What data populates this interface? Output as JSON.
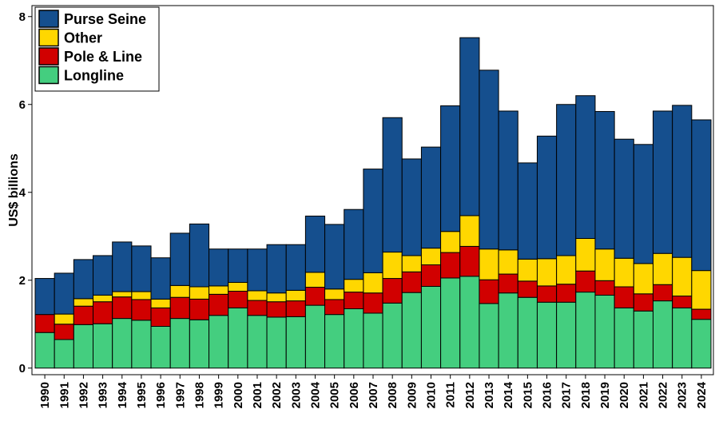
{
  "chart_data": {
    "type": "bar",
    "stacked": true,
    "ylabel": "US$ billions",
    "xlabel": "",
    "ylim": [
      -0.15,
      8.25
    ],
    "yticks": [
      0,
      2,
      4,
      6,
      8
    ],
    "grid": false,
    "legend_placement": "top-left",
    "categories": [
      "1990",
      "1991",
      "1992",
      "1993",
      "1994",
      "1995",
      "1996",
      "1997",
      "1998",
      "1999",
      "2000",
      "2001",
      "2002",
      "2003",
      "2004",
      "2005",
      "2006",
      "2007",
      "2008",
      "2009",
      "2010",
      "2011",
      "2012",
      "2013",
      "2014",
      "2015",
      "2016",
      "2017",
      "2018",
      "2019",
      "2020",
      "2021",
      "2022",
      "2023",
      "2024"
    ],
    "series": [
      {
        "name": "Longline",
        "color": "#44CE7F",
        "values": [
          0.81,
          0.65,
          0.99,
          1.01,
          1.13,
          1.09,
          0.95,
          1.13,
          1.1,
          1.2,
          1.37,
          1.2,
          1.16,
          1.17,
          1.43,
          1.22,
          1.35,
          1.25,
          1.48,
          1.72,
          1.86,
          2.05,
          2.09,
          1.47,
          1.71,
          1.61,
          1.5,
          1.5,
          1.73,
          1.66,
          1.37,
          1.3,
          1.53,
          1.37,
          1.11
        ]
      },
      {
        "name": "Pole & Line",
        "color": "#D10000",
        "values": [
          0.41,
          0.35,
          0.42,
          0.5,
          0.49,
          0.47,
          0.42,
          0.48,
          0.47,
          0.48,
          0.38,
          0.34,
          0.35,
          0.36,
          0.41,
          0.34,
          0.38,
          0.46,
          0.56,
          0.47,
          0.49,
          0.58,
          0.68,
          0.54,
          0.43,
          0.37,
          0.37,
          0.41,
          0.48,
          0.33,
          0.48,
          0.39,
          0.37,
          0.27,
          0.23
        ]
      },
      {
        "name": "Other",
        "color": "#FFD700",
        "values": [
          0.0,
          0.23,
          0.17,
          0.15,
          0.12,
          0.18,
          0.2,
          0.27,
          0.28,
          0.19,
          0.2,
          0.22,
          0.2,
          0.24,
          0.34,
          0.24,
          0.29,
          0.46,
          0.6,
          0.37,
          0.38,
          0.48,
          0.7,
          0.7,
          0.55,
          0.5,
          0.62,
          0.65,
          0.74,
          0.72,
          0.65,
          0.69,
          0.71,
          0.88,
          0.88
        ]
      },
      {
        "name": "Purse Seine",
        "color": "#154F8E",
        "values": [
          0.82,
          0.93,
          0.89,
          0.9,
          1.13,
          1.04,
          0.94,
          1.19,
          1.43,
          0.84,
          0.76,
          0.95,
          1.1,
          1.04,
          1.28,
          1.47,
          1.59,
          2.36,
          3.06,
          2.2,
          2.3,
          2.86,
          4.05,
          4.07,
          3.16,
          2.19,
          2.79,
          3.44,
          3.25,
          3.13,
          2.71,
          2.71,
          3.24,
          3.46,
          3.43
        ]
      }
    ],
    "legend": [
      "Purse Seine",
      "Other",
      "Pole & Line",
      "Longline"
    ]
  }
}
